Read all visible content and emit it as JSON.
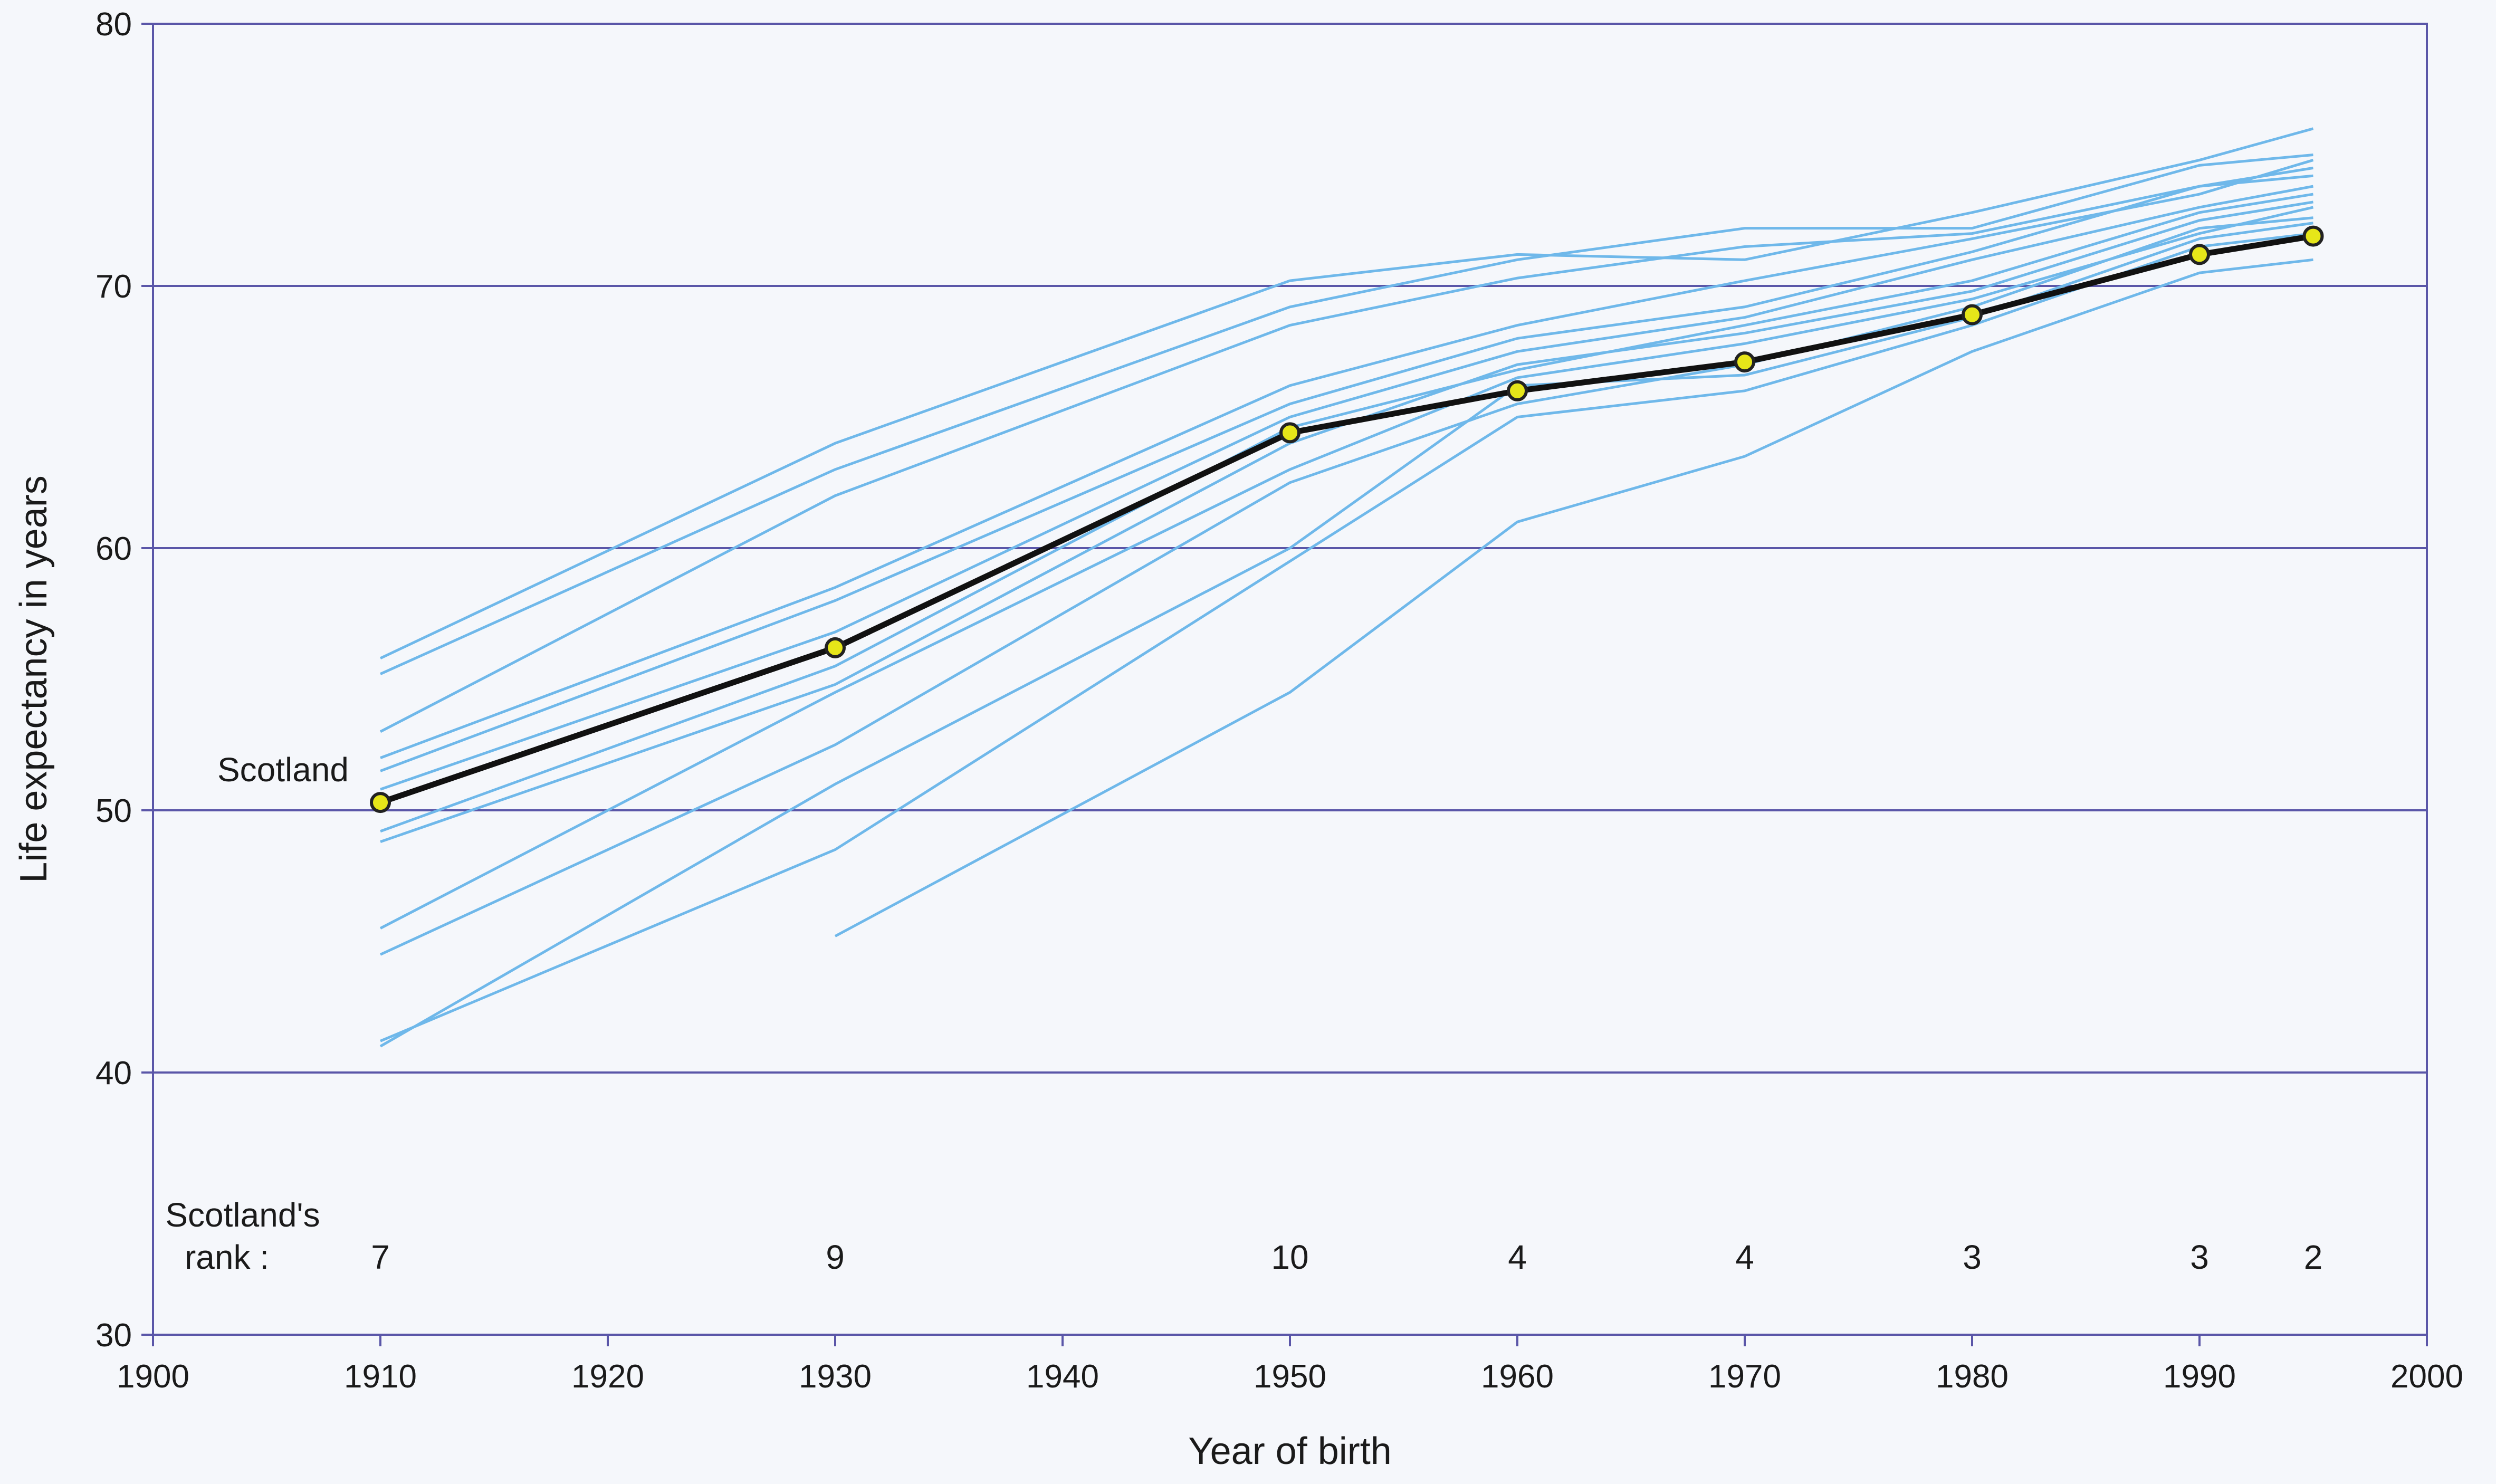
{
  "chart_data": {
    "type": "line",
    "title": "",
    "xlabel": "Year of birth",
    "ylabel": "Life expectancy in years",
    "xlim": [
      1900,
      2000
    ],
    "ylim": [
      30,
      80
    ],
    "x_ticks": [
      1900,
      1910,
      1920,
      1930,
      1940,
      1950,
      1960,
      1970,
      1980,
      1990,
      2000
    ],
    "y_ticks": [
      30,
      40,
      50,
      60,
      70,
      80
    ],
    "grid": "horizontal",
    "legend": "none",
    "colors": {
      "highlight": "#111111",
      "marker": "#e6e619",
      "others": "#6fb8ea",
      "grid": "#5a56a8"
    },
    "highlight_series": {
      "name": "Scotland",
      "x": [
        1910,
        1930,
        1950,
        1960,
        1970,
        1980,
        1990,
        1995
      ],
      "y": [
        50.3,
        56.2,
        64.4,
        66.0,
        67.1,
        68.9,
        71.2,
        71.9
      ]
    },
    "other_series": [
      {
        "x": [
          1910,
          1930,
          1950,
          1960,
          1970,
          1980,
          1990,
          1995
        ],
        "y": [
          55.8,
          64.0,
          70.2,
          71.2,
          71.0,
          72.8,
          74.8,
          76.0
        ]
      },
      {
        "x": [
          1910,
          1930,
          1950,
          1960,
          1970,
          1980,
          1990,
          1995
        ],
        "y": [
          55.2,
          63.0,
          69.2,
          71.0,
          72.2,
          72.2,
          74.6,
          75.0
        ]
      },
      {
        "x": [
          1910,
          1930,
          1950,
          1960,
          1970,
          1980,
          1990,
          1995
        ],
        "y": [
          53.0,
          62.0,
          68.5,
          70.3,
          71.5,
          72.0,
          73.8,
          74.5
        ]
      },
      {
        "x": [
          1910,
          1930,
          1950,
          1960,
          1970,
          1980,
          1990,
          1995
        ],
        "y": [
          52.0,
          58.5,
          66.2,
          68.5,
          70.2,
          71.8,
          73.5,
          74.8
        ]
      },
      {
        "x": [
          1910,
          1930,
          1950,
          1960,
          1970,
          1980,
          1990,
          1995
        ],
        "y": [
          51.5,
          58.0,
          65.5,
          68.0,
          69.2,
          71.3,
          73.8,
          74.2
        ]
      },
      {
        "x": [
          1910,
          1930,
          1950,
          1960,
          1970,
          1980,
          1990,
          1995
        ],
        "y": [
          50.8,
          56.8,
          65.0,
          67.5,
          68.8,
          71.0,
          73.0,
          73.8
        ]
      },
      {
        "x": [
          1910,
          1930,
          1950,
          1960,
          1970,
          1980,
          1990,
          1995
        ],
        "y": [
          49.2,
          55.5,
          64.6,
          66.8,
          68.5,
          70.2,
          72.8,
          73.5
        ]
      },
      {
        "x": [
          1910,
          1930,
          1950,
          1960,
          1970,
          1980,
          1990,
          1995
        ],
        "y": [
          48.8,
          54.8,
          64.0,
          67.0,
          68.2,
          69.8,
          72.5,
          73.2
        ]
      },
      {
        "x": [
          1910,
          1930,
          1950,
          1960,
          1970,
          1980,
          1990,
          1995
        ],
        "y": [
          45.5,
          54.5,
          63.0,
          66.5,
          67.8,
          69.5,
          72.0,
          73.0
        ]
      },
      {
        "x": [
          1910,
          1930,
          1950,
          1960,
          1970,
          1980,
          1990,
          1995
        ],
        "y": [
          44.5,
          52.5,
          62.5,
          65.5,
          67.0,
          69.2,
          72.2,
          72.6
        ]
      },
      {
        "x": [
          1910,
          1930,
          1950,
          1960,
          1970,
          1980,
          1990,
          1995
        ],
        "y": [
          41.0,
          51.0,
          60.0,
          66.2,
          66.6,
          68.8,
          71.8,
          72.4
        ]
      },
      {
        "x": [
          1910,
          1930,
          1950,
          1960,
          1970,
          1980,
          1990,
          1995
        ],
        "y": [
          41.2,
          48.5,
          59.5,
          65.0,
          66.0,
          68.5,
          71.5,
          72.0
        ]
      },
      {
        "x": [
          1930,
          1950,
          1960,
          1970,
          1980,
          1990,
          1995
        ],
        "y": [
          45.2,
          54.5,
          61.0,
          63.5,
          67.5,
          70.5,
          71.0
        ]
      }
    ],
    "series_label": {
      "text": "Scotland"
    },
    "rank": {
      "label_line1": "Scotland's",
      "label_line2": "rank :",
      "values": [
        {
          "x": 1910,
          "rank": "7"
        },
        {
          "x": 1930,
          "rank": "9"
        },
        {
          "x": 1950,
          "rank": "10"
        },
        {
          "x": 1960,
          "rank": "4"
        },
        {
          "x": 1970,
          "rank": "4"
        },
        {
          "x": 1980,
          "rank": "3"
        },
        {
          "x": 1990,
          "rank": "3"
        },
        {
          "x": 1995,
          "rank": "2"
        }
      ]
    }
  }
}
